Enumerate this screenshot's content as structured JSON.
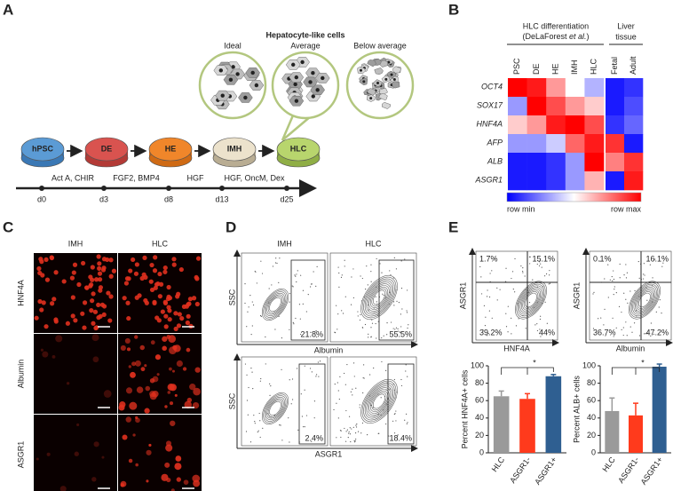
{
  "panels": {
    "A": {
      "letter": "A",
      "title": "Hepatocyte-like cells",
      "morphologies": [
        "Ideal",
        "Average",
        "Below average"
      ],
      "stages": [
        "hPSC",
        "DE",
        "HE",
        "IMH",
        "HLC"
      ],
      "factors": [
        "Act A, CHIR",
        "FGF2, BMP4",
        "HGF",
        "HGF, OncM, Dex"
      ],
      "days": [
        "d0",
        "d3",
        "d8",
        "d13",
        "d25"
      ]
    },
    "B": {
      "letter": "B",
      "group1": "HLC differentiation",
      "citation_prefix": "(DeLaForest ",
      "citation_italic": "et al.",
      "citation_suffix": ")",
      "group2_lines": [
        "Liver",
        "tissue"
      ],
      "columns": [
        "PSC",
        "DE",
        "HE",
        "IMH",
        "HLC",
        "Fetal",
        "Adult"
      ],
      "genes": [
        "OCT4",
        "SOX17",
        "HNF4A",
        "AFP",
        "ALB",
        "ASGR1"
      ],
      "values": [
        [
          1,
          0.95,
          0.7,
          0.5,
          0.35,
          0.05,
          0.1
        ],
        [
          0.3,
          1,
          0.85,
          0.7,
          0.6,
          0.05,
          0.15
        ],
        [
          0.6,
          0.7,
          0.95,
          1,
          0.85,
          0.1,
          0.2
        ],
        [
          0.3,
          0.3,
          0.4,
          0.8,
          0.95,
          0.9,
          0.05
        ],
        [
          0.05,
          0.05,
          0.1,
          0.3,
          1,
          0.75,
          0.9
        ],
        [
          0.05,
          0.05,
          0.1,
          0.3,
          0.65,
          0.05,
          0.95
        ]
      ],
      "legend_min": "row min",
      "legend_max": "row max"
    },
    "C": {
      "letter": "C",
      "columns": [
        "IMH",
        "HLC"
      ],
      "rows": [
        "HNF4A",
        "Albumin",
        "ASGR1"
      ]
    },
    "D": {
      "letter": "D",
      "columns": [
        "IMH",
        "HLC"
      ],
      "ylabel": "SSC",
      "xlabels": [
        "Albumin",
        "ASGR1"
      ],
      "percentages": [
        [
          "21.8%",
          "55.5%"
        ],
        [
          "2.4%",
          "18.4%"
        ]
      ]
    },
    "E": {
      "letter": "E",
      "ylabel": "ASGR1",
      "xlabels": [
        "HNF4A",
        "Albumin"
      ],
      "quadrants": [
        [
          "1.7%",
          "15.1%",
          "39.2%",
          "44%"
        ],
        [
          "0.1%",
          "16.1%",
          "36.7%",
          "47.2%"
        ]
      ]
    }
  },
  "chart_data": [
    {
      "type": "bar",
      "ylabel": "Percent HNF4A+ cells",
      "categories": [
        "HLC",
        "ASGR1-",
        "ASGR1+"
      ],
      "values": [
        65,
        62,
        88
      ],
      "errors": [
        6,
        6,
        2
      ],
      "colors": [
        "#9a9a9a",
        "#ff3a1c",
        "#2f5f91"
      ],
      "ylim": [
        0,
        100
      ],
      "yticks": [
        0,
        20,
        40,
        60,
        80,
        100
      ],
      "annotation": "*"
    },
    {
      "type": "bar",
      "ylabel": "Percent ALB+ cells",
      "categories": [
        "HLC",
        "ASGR1-",
        "ASGR1+"
      ],
      "values": [
        48,
        43,
        99
      ],
      "errors": [
        15,
        14,
        3
      ],
      "colors": [
        "#9a9a9a",
        "#ff3a1c",
        "#2f5f91"
      ],
      "ylim": [
        0,
        100
      ],
      "yticks": [
        0,
        20,
        40,
        60,
        80,
        100
      ],
      "annotation": "*"
    }
  ]
}
